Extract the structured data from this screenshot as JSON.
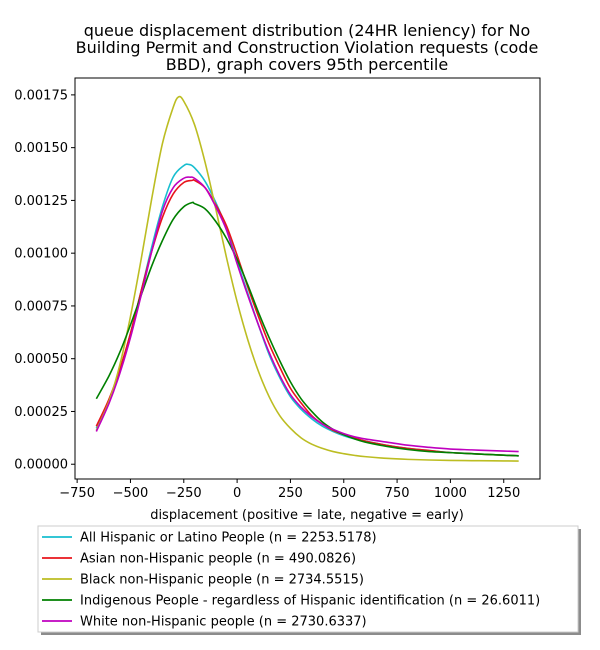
{
  "chart_data": {
    "type": "line",
    "title_lines": [
      "queue displacement distribution (24HR leniency) for No",
      "Building Permit and Construction Violation  requests (code",
      "BBD), graph covers 95th percentile"
    ],
    "xlabel": "displacement (positive = late, negative = early)",
    "ylabel": "",
    "xlim": [
      -760,
      1420
    ],
    "ylim": [
      -7e-05,
      0.00183
    ],
    "x_ticks": [
      -750,
      -500,
      -250,
      0,
      250,
      500,
      750,
      1000,
      1250
    ],
    "x_tick_labels": [
      "−750",
      "−500",
      "−250",
      "0",
      "250",
      "500",
      "750",
      "1000",
      "1250"
    ],
    "y_ticks": [
      0,
      0.00025,
      0.0005,
      0.00075,
      0.001,
      0.00125,
      0.0015,
      0.00175
    ],
    "y_tick_labels": [
      "0.00000",
      "0.00025",
      "0.00050",
      "0.00075",
      "0.00100",
      "0.00125",
      "0.00150",
      "0.00175"
    ],
    "grid": false,
    "legend_position": "below",
    "series": [
      {
        "name": "All Hispanic or Latino People (n = 2253.5178)",
        "color": "#17becf",
        "x": [
          -660,
          -600,
          -550,
          -500,
          -450,
          -400,
          -350,
          -300,
          -250,
          -225,
          -200,
          -150,
          -100,
          -50,
          0,
          50,
          100,
          150,
          200,
          250,
          300,
          350,
          400,
          450,
          500,
          550,
          600,
          700,
          800,
          900,
          1000,
          1100,
          1200,
          1320
        ],
        "y": [
          0.00017,
          0.0003,
          0.00044,
          0.00062,
          0.00082,
          0.00103,
          0.00122,
          0.00136,
          0.001415,
          0.00142,
          0.001405,
          0.00134,
          0.00124,
          0.00112,
          0.00096,
          0.00081,
          0.00066,
          0.00052,
          0.00041,
          0.00032,
          0.00026,
          0.000215,
          0.00018,
          0.000155,
          0.000135,
          0.00012,
          0.00011,
          9e-05,
          7.5e-05,
          6.5e-05,
          5.5e-05,
          5e-05,
          4.5e-05,
          4e-05
        ]
      },
      {
        "name": "Asian non-Hispanic people (n = 490.0826)",
        "color": "#e8141c",
        "x": [
          -660,
          -600,
          -550,
          -500,
          -450,
          -400,
          -350,
          -300,
          -250,
          -210,
          -200,
          -150,
          -100,
          -50,
          0,
          50,
          100,
          150,
          200,
          250,
          300,
          350,
          400,
          450,
          500,
          550,
          600,
          700,
          800,
          900,
          1000,
          1100,
          1200,
          1320
        ],
        "y": [
          0.00018,
          0.00031,
          0.00045,
          0.00062,
          0.00082,
          0.00101,
          0.00117,
          0.00128,
          0.001335,
          0.001345,
          0.001345,
          0.00131,
          0.00123,
          0.00113,
          0.00099,
          0.00084,
          0.0007,
          0.00057,
          0.00046,
          0.00036,
          0.00029,
          0.00023,
          0.00019,
          0.00016,
          0.00014,
          0.000125,
          0.00011,
          9e-05,
          7.5e-05,
          6.5e-05,
          5.5e-05,
          5e-05,
          4.5e-05,
          4e-05
        ]
      },
      {
        "name": "Black non-Hispanic people (n = 2734.5515)",
        "color": "#bcbd22",
        "x": [
          -660,
          -600,
          -550,
          -500,
          -450,
          -400,
          -350,
          -300,
          -275,
          -250,
          -200,
          -150,
          -100,
          -50,
          0,
          50,
          100,
          150,
          200,
          250,
          300,
          350,
          400,
          450,
          500,
          550,
          600,
          700,
          800,
          900,
          1000,
          1100,
          1200,
          1320
        ],
        "y": [
          0.00016,
          0.0003,
          0.00047,
          0.0007,
          0.00097,
          0.00126,
          0.00152,
          0.00169,
          0.00174,
          0.00172,
          0.00161,
          0.00143,
          0.00121,
          0.00098,
          0.00077,
          0.00059,
          0.00044,
          0.00032,
          0.00023,
          0.00017,
          0.000125,
          9.5e-05,
          7.5e-05,
          6e-05,
          5e-05,
          4.2e-05,
          3.6e-05,
          2.8e-05,
          2.3e-05,
          2e-05,
          1.8e-05,
          1.7e-05,
          1.6e-05,
          1.5e-05
        ]
      },
      {
        "name": "Indigenous People - regardless of Hispanic identification (n = 26.6011)",
        "color": "#008000",
        "x": [
          -660,
          -600,
          -550,
          -500,
          -450,
          -400,
          -350,
          -300,
          -250,
          -210,
          -200,
          -150,
          -100,
          -50,
          0,
          50,
          100,
          150,
          200,
          250,
          300,
          350,
          400,
          450,
          500,
          550,
          600,
          700,
          800,
          900,
          1000,
          1100,
          1200,
          1320
        ],
        "y": [
          0.00031,
          0.00042,
          0.00053,
          0.00066,
          0.0008,
          0.00094,
          0.00106,
          0.00116,
          0.00122,
          0.00124,
          0.001235,
          0.00121,
          0.00115,
          0.00107,
          0.00097,
          0.00085,
          0.00072,
          0.0006,
          0.00049,
          0.00039,
          0.00031,
          0.00025,
          0.0002,
          0.000165,
          0.00014,
          0.00012,
          0.000105,
          8.5e-05,
          7e-05,
          6e-05,
          5.5e-05,
          5e-05,
          4.5e-05,
          4e-05
        ]
      },
      {
        "name": "White non-Hispanic people (n = 2730.6337)",
        "color": "#bf00bf",
        "x": [
          -660,
          -600,
          -550,
          -500,
          -450,
          -400,
          -350,
          -300,
          -250,
          -220,
          -200,
          -150,
          -100,
          -50,
          0,
          50,
          100,
          150,
          200,
          250,
          300,
          350,
          400,
          450,
          500,
          550,
          600,
          700,
          800,
          900,
          1000,
          1100,
          1200,
          1320
        ],
        "y": [
          0.000155,
          0.00029,
          0.00043,
          0.0006,
          0.0008,
          0.00101,
          0.0012,
          0.00131,
          0.001355,
          0.00136,
          0.001355,
          0.00131,
          0.00122,
          0.00111,
          0.00095,
          0.0008,
          0.00066,
          0.00053,
          0.00042,
          0.00033,
          0.00027,
          0.000225,
          0.00019,
          0.000165,
          0.000145,
          0.00013,
          0.00012,
          0.000105,
          9e-05,
          8e-05,
          7.2e-05,
          6.8e-05,
          6.4e-05,
          6e-05
        ]
      }
    ]
  }
}
